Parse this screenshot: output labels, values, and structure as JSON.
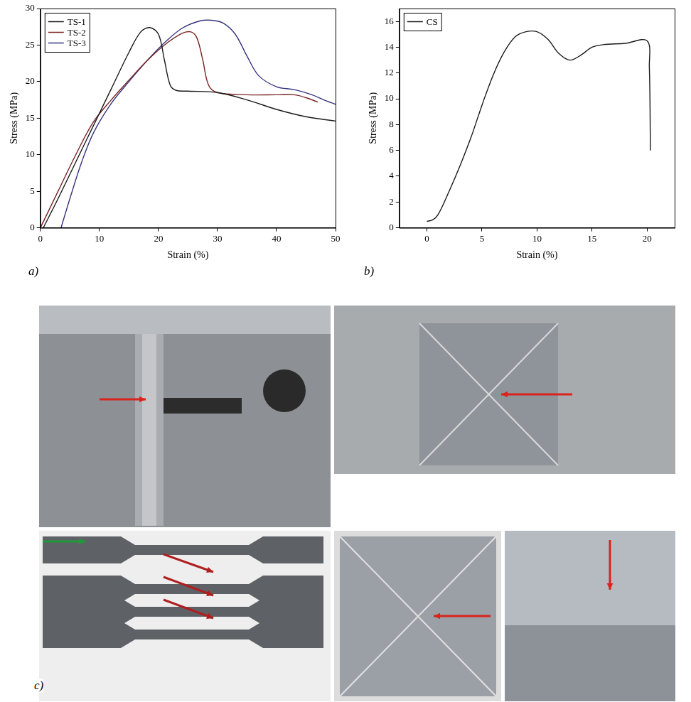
{
  "chart_data": [
    {
      "type": "line",
      "panel": "a)",
      "x_label": "Strain (%)",
      "y_label": "Stress (MPa)",
      "xlim": [
        0,
        50
      ],
      "xticks": [
        0,
        10,
        20,
        30,
        40,
        50
      ],
      "ylim": [
        0,
        30
      ],
      "yticks": [
        0,
        5,
        10,
        15,
        20,
        25,
        30
      ],
      "grid": false,
      "legend": "upper left",
      "series": [
        {
          "name": "TS-1",
          "color": "#1a1a1a",
          "x": [
            0.5,
            3,
            6,
            9,
            12,
            15,
            17,
            18.5,
            20,
            21,
            22,
            23,
            25,
            30,
            35,
            40,
            45,
            50
          ],
          "values": [
            0,
            4,
            9,
            14,
            19,
            24,
            26.8,
            27.4,
            26.5,
            23,
            19.5,
            18.8,
            18.7,
            18.5,
            17.5,
            16.2,
            15.2,
            14.6
          ]
        },
        {
          "name": "TS-2",
          "color": "#7a2424",
          "x": [
            0,
            3,
            6,
            9,
            12,
            15,
            18,
            21,
            24,
            25.5,
            26.5,
            27.5,
            28.5,
            30,
            35,
            40,
            43,
            45,
            47
          ],
          "values": [
            0,
            5,
            10,
            14.5,
            17.5,
            20.2,
            22.8,
            25,
            26.6,
            26.8,
            26,
            23,
            19.5,
            18.5,
            18.2,
            18.2,
            18.2,
            17.8,
            17.2
          ]
        },
        {
          "name": "TS-3",
          "color": "#34347e",
          "x": [
            3.5,
            5,
            7,
            9,
            12,
            15,
            18,
            21,
            24,
            27,
            29,
            31,
            33,
            35,
            37,
            40,
            43,
            46,
            48,
            50
          ],
          "values": [
            0,
            4,
            9,
            13,
            17,
            20,
            22.8,
            25.3,
            27.3,
            28.3,
            28.4,
            28,
            26.5,
            23.5,
            20.8,
            19.3,
            18.9,
            18.2,
            17.5,
            16.9
          ]
        }
      ]
    },
    {
      "type": "line",
      "panel": "b)",
      "x_label": "Strain (%)",
      "y_label": "Stress (MPa)",
      "xlim": [
        -2.5,
        22.5
      ],
      "xticks": [
        0,
        5,
        10,
        15,
        20
      ],
      "ylim": [
        0,
        17
      ],
      "yticks": [
        0,
        2,
        4,
        6,
        8,
        10,
        12,
        14,
        16
      ],
      "grid": false,
      "legend": "upper left",
      "series": [
        {
          "name": "CS",
          "color": "#1a1a1a",
          "x": [
            0,
            0.5,
            1,
            2,
            3,
            4,
            5,
            6,
            7,
            8,
            9,
            10,
            11,
            12,
            13,
            14,
            15,
            16,
            18,
            20,
            20.2,
            20.3
          ],
          "values": [
            0.5,
            0.6,
            1,
            2.8,
            4.8,
            7,
            9.5,
            11.8,
            13.6,
            14.8,
            15.2,
            15.2,
            14.6,
            13.5,
            13,
            13.4,
            14,
            14.2,
            14.3,
            14.5,
            12.5,
            6
          ]
        }
      ]
    }
  ],
  "photo_panel": {
    "panel": "c)"
  }
}
